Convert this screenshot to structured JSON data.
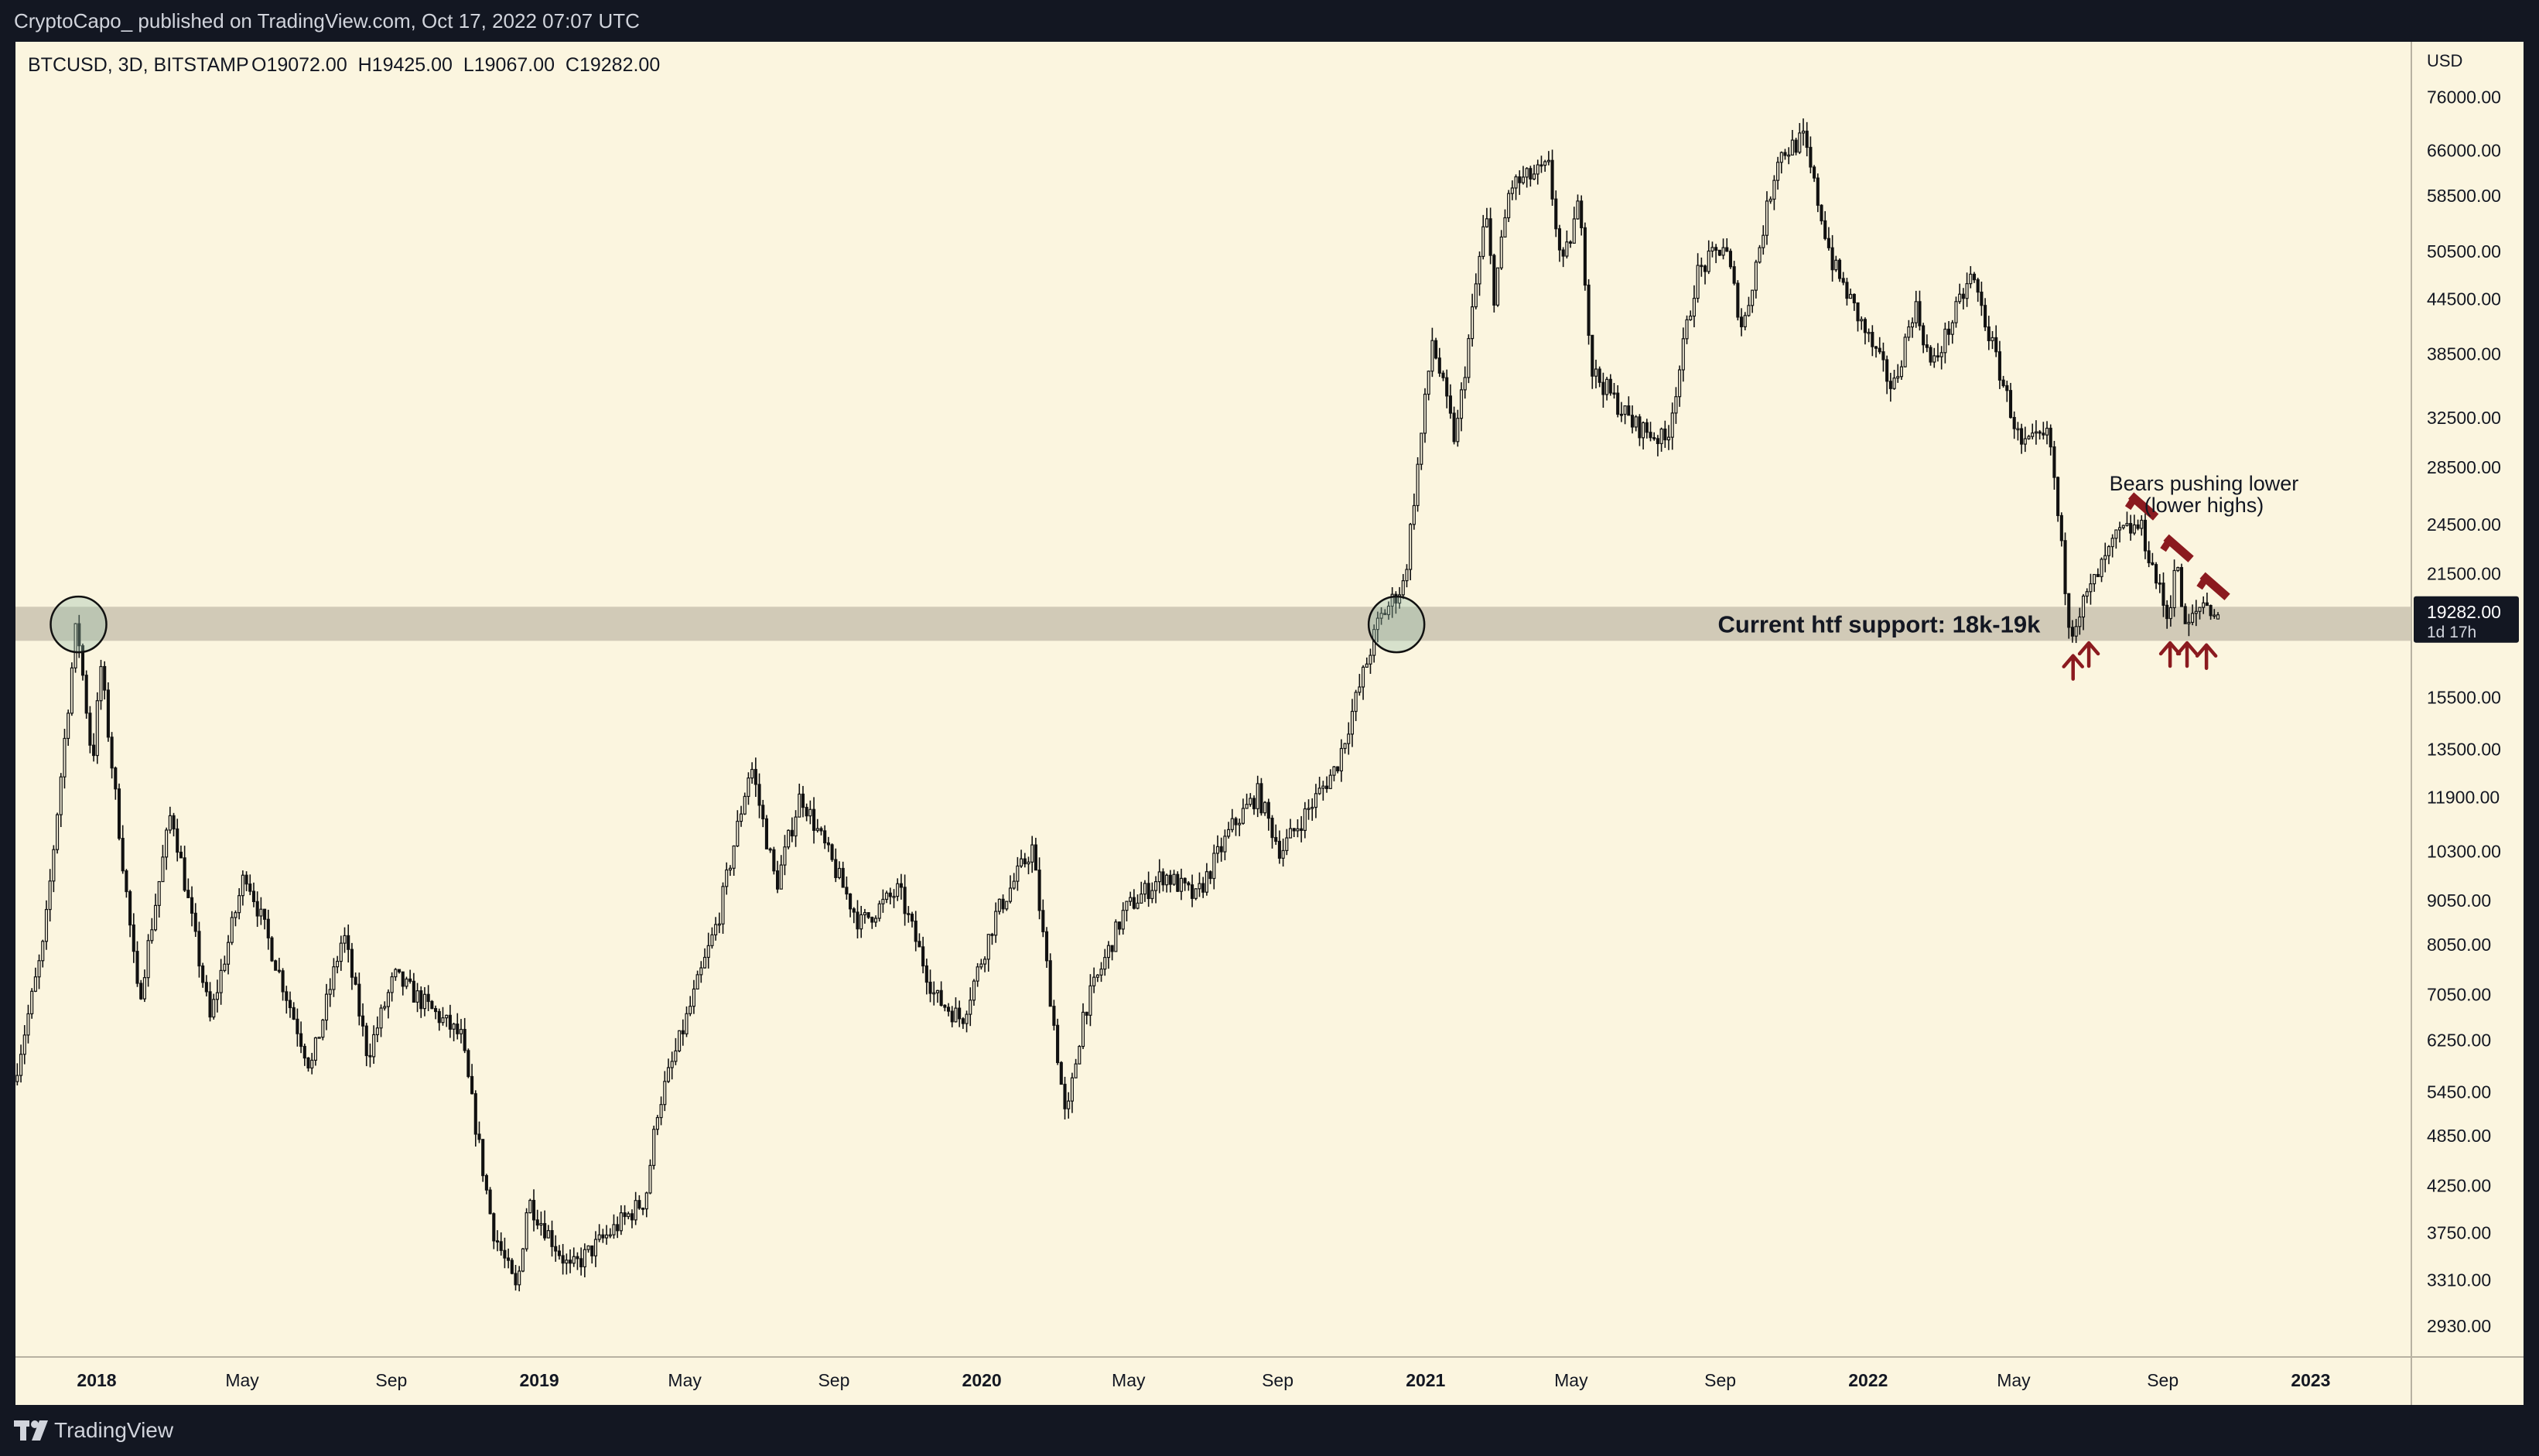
{
  "header": {
    "publisher_line": "CryptoCapo_ published on TradingView.com, Oct 17, 2022 07:07 UTC"
  },
  "legend": {
    "symbol": "BTCUSD, 3D, BITSTAMP",
    "ohlc": "O19072.00  H19425.00  L19067.00  C19282.00"
  },
  "footer": {
    "brand": "TradingView"
  },
  "colors": {
    "background": "#fbf5df",
    "candle": "#111111",
    "support_band": "#c9c2b0",
    "annotation_red": "#8b1a1f",
    "price_tag": "#131722"
  },
  "chart_data": {
    "type": "candlestick",
    "symbol": "BTCUSD",
    "interval": "3D",
    "exchange": "BITSTAMP",
    "y_scale": "log",
    "y_axis_unit": "USD",
    "y_ticks": [
      76000,
      66000,
      58500,
      50500,
      44500,
      38500,
      32500,
      28500,
      24500,
      21500,
      15500,
      13500,
      11900,
      10300,
      9050,
      8050,
      7050,
      6250,
      5450,
      4850,
      4250,
      3750,
      3310,
      2930
    ],
    "y_tick_labels": [
      "76000.00",
      "66000.00",
      "58500.00",
      "50500.00",
      "44500.00",
      "38500.00",
      "32500.00",
      "28500.00",
      "24500.00",
      "21500.00",
      "15500.00",
      "13500.00",
      "11900.00",
      "10300.00",
      "9050.00",
      "8050.00",
      "7050.00",
      "6250.00",
      "5450.00",
      "4850.00",
      "4250.00",
      "3750.00",
      "3310.00",
      "2930.00"
    ],
    "x_tick_labels": [
      {
        "date": "2018-01-01",
        "label": "2018",
        "bold": true
      },
      {
        "date": "2018-05-01",
        "label": "May",
        "bold": false
      },
      {
        "date": "2018-09-01",
        "label": "Sep",
        "bold": false
      },
      {
        "date": "2019-01-01",
        "label": "2019",
        "bold": true
      },
      {
        "date": "2019-05-01",
        "label": "May",
        "bold": false
      },
      {
        "date": "2019-09-01",
        "label": "Sep",
        "bold": false
      },
      {
        "date": "2020-01-01",
        "label": "2020",
        "bold": true
      },
      {
        "date": "2020-05-01",
        "label": "May",
        "bold": false
      },
      {
        "date": "2020-09-01",
        "label": "Sep",
        "bold": false
      },
      {
        "date": "2021-01-01",
        "label": "2021",
        "bold": true
      },
      {
        "date": "2021-05-01",
        "label": "May",
        "bold": false
      },
      {
        "date": "2021-09-01",
        "label": "Sep",
        "bold": false
      },
      {
        "date": "2022-01-01",
        "label": "2022",
        "bold": true
      },
      {
        "date": "2022-05-01",
        "label": "May",
        "bold": false
      },
      {
        "date": "2022-09-01",
        "label": "Sep",
        "bold": false
      },
      {
        "date": "2023-01-01",
        "label": "2023",
        "bold": true
      }
    ],
    "x_range": [
      "2017-10-26",
      "2023-03-25"
    ],
    "y_range": [
      2700,
      88000
    ],
    "price_path": [
      [
        "2017-10-26",
        5600
      ],
      [
        "2017-11-20",
        8100
      ],
      [
        "2017-12-17",
        19000
      ],
      [
        "2017-12-30",
        13000
      ],
      [
        "2018-01-06",
        16800
      ],
      [
        "2018-02-06",
        6900
      ],
      [
        "2018-03-05",
        11500
      ],
      [
        "2018-04-06",
        6600
      ],
      [
        "2018-05-05",
        9800
      ],
      [
        "2018-06-28",
        5800
      ],
      [
        "2018-07-25",
        8300
      ],
      [
        "2018-08-14",
        6000
      ],
      [
        "2018-09-05",
        7400
      ],
      [
        "2018-10-30",
        6300
      ],
      [
        "2018-11-25",
        3800
      ],
      [
        "2018-12-15",
        3200
      ],
      [
        "2018-12-24",
        4100
      ],
      [
        "2019-01-28",
        3400
      ],
      [
        "2019-03-31",
        4100
      ],
      [
        "2019-04-10",
        5200
      ],
      [
        "2019-05-30",
        8600
      ],
      [
        "2019-06-26",
        13000
      ],
      [
        "2019-07-17",
        9400
      ],
      [
        "2019-08-06",
        12000
      ],
      [
        "2019-09-24",
        8500
      ],
      [
        "2019-10-26",
        9300
      ],
      [
        "2019-11-25",
        7000
      ],
      [
        "2019-12-17",
        6600
      ],
      [
        "2020-01-14",
        8700
      ],
      [
        "2020-02-13",
        10400
      ],
      [
        "2020-03-12",
        5000
      ],
      [
        "2020-03-26",
        6700
      ],
      [
        "2020-04-29",
        8800
      ],
      [
        "2020-06-01",
        9700
      ],
      [
        "2020-06-27",
        9100
      ],
      [
        "2020-07-27",
        11000
      ],
      [
        "2020-08-17",
        12000
      ],
      [
        "2020-09-05",
        10300
      ],
      [
        "2020-10-21",
        12900
      ],
      [
        "2020-11-25",
        19000
      ],
      [
        "2020-12-16",
        21000
      ],
      [
        "2021-01-08",
        40000
      ],
      [
        "2021-01-27",
        30500
      ],
      [
        "2021-02-21",
        56000
      ],
      [
        "2021-02-28",
        45000
      ],
      [
        "2021-03-13",
        60000
      ],
      [
        "2021-04-14",
        63000
      ],
      [
        "2021-04-25",
        48000
      ],
      [
        "2021-05-10",
        58000
      ],
      [
        "2021-05-19",
        37000
      ],
      [
        "2021-06-22",
        32000
      ],
      [
        "2021-07-20",
        30500
      ],
      [
        "2021-08-14",
        47500
      ],
      [
        "2021-09-06",
        51500
      ],
      [
        "2021-09-21",
        41000
      ],
      [
        "2021-10-20",
        65000
      ],
      [
        "2021-11-10",
        68000
      ],
      [
        "2021-12-04",
        49000
      ],
      [
        "2022-01-23",
        35000
      ],
      [
        "2022-02-10",
        44000
      ],
      [
        "2022-02-24",
        37000
      ],
      [
        "2022-03-29",
        47500
      ],
      [
        "2022-05-09",
        30000
      ],
      [
        "2022-06-01",
        31000
      ],
      [
        "2022-06-18",
        18500
      ],
      [
        "2022-06-30",
        20000
      ],
      [
        "2022-07-28",
        23900
      ],
      [
        "2022-08-15",
        24400
      ],
      [
        "2022-09-07",
        19000
      ],
      [
        "2022-09-13",
        22500
      ],
      [
        "2022-09-21",
        18500
      ],
      [
        "2022-10-06",
        20000
      ],
      [
        "2022-10-17",
        19282
      ]
    ],
    "last_candle": {
      "open": 19072.0,
      "high": 19425.0,
      "low": 19067.0,
      "close": 19282.0
    },
    "current_price_label": "19282.00",
    "countdown_label": "1d 17h",
    "support_zone": {
      "low": 18000,
      "high": 19700
    },
    "highlight_circles": [
      {
        "date": "2017-12-17",
        "price": 18800
      },
      {
        "date": "2020-12-08",
        "price": 18800
      }
    ],
    "support_annotation": {
      "text": "Current htf support: 18k-19k",
      "date": "2022-01-10",
      "price": 18820
    },
    "bears_annotation": {
      "line1": "Bears pushing lower",
      "line2": "(lower highs)",
      "date": "2022-10-05"
    },
    "lower_high_dashes": [
      {
        "date": "2022-08-16",
        "price": 25700
      },
      {
        "date": "2022-09-14",
        "price": 23000
      },
      {
        "date": "2022-10-14",
        "price": 20800
      }
    ],
    "support_test_arrows": [
      {
        "date": "2022-06-19",
        "price": 17300
      },
      {
        "date": "2022-07-02",
        "price": 17900
      },
      {
        "date": "2022-09-07",
        "price": 17900
      },
      {
        "date": "2022-09-21",
        "price": 17900
      },
      {
        "date": "2022-10-07",
        "price": 17800
      }
    ]
  }
}
